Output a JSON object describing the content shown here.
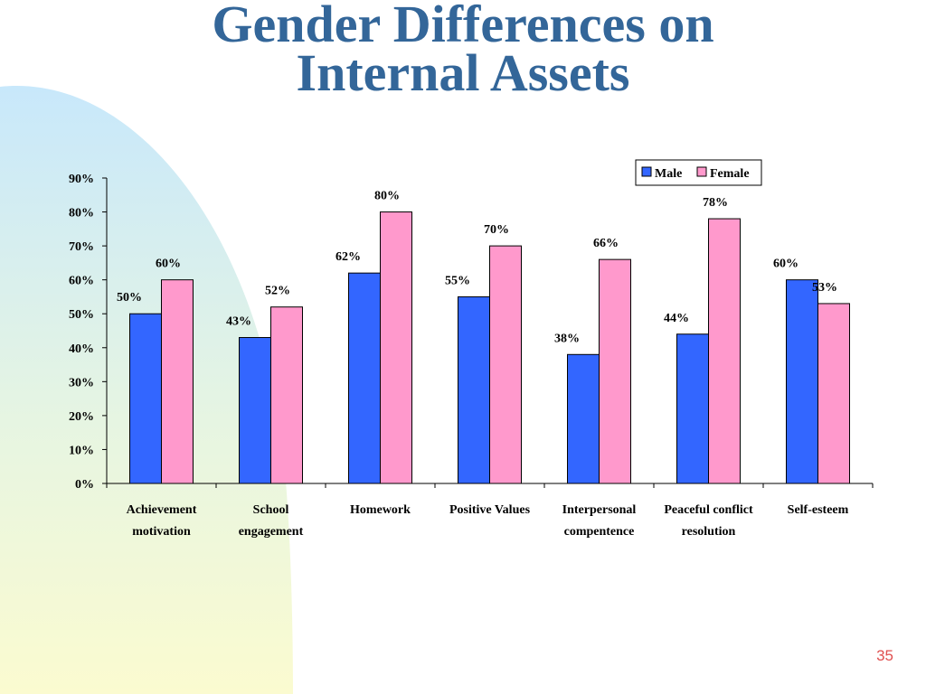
{
  "slide": {
    "title_line1": "Gender Differences on",
    "title_line2": "Internal Assets",
    "page_number": "35",
    "title_color": "#336699",
    "page_number_color": "#e05050"
  },
  "chart_data": {
    "type": "bar",
    "categories": [
      [
        "Achievement",
        "motivation"
      ],
      [
        "School",
        "engagement"
      ],
      [
        "Homework"
      ],
      [
        "Positive Values"
      ],
      [
        "Interpersonal",
        "compentence"
      ],
      [
        "Peaceful conflict",
        "resolution"
      ],
      [
        "Self-esteem"
      ]
    ],
    "series": [
      {
        "name": "Male",
        "color": "#3366FF",
        "values": [
          50,
          43,
          62,
          55,
          38,
          44,
          60
        ],
        "labels": [
          "50%",
          "43%",
          "62%",
          "55%",
          "38%",
          "44%",
          "60%"
        ]
      },
      {
        "name": "Female",
        "color": "#FF99CC",
        "values": [
          60,
          52,
          80,
          70,
          66,
          78,
          53
        ],
        "labels": [
          "60%",
          "52%",
          "80%",
          "70%",
          "66%",
          "78%",
          "53%"
        ]
      }
    ],
    "y_ticks": [
      "0%",
      "10%",
      "20%",
      "30%",
      "40%",
      "50%",
      "60%",
      "70%",
      "80%",
      "90%"
    ],
    "ylim": [
      0,
      90
    ],
    "grid": false,
    "legend_position": "top-right",
    "title": "",
    "xlabel": "",
    "ylabel": ""
  }
}
